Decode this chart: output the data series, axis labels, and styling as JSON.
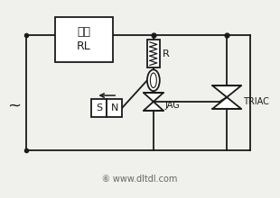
{
  "bg_color": "#f0f0ec",
  "line_color": "#1a1a1a",
  "title_text": "⑥ www.dltdl.com",
  "load_label_1": "负载",
  "load_label_2": "RL",
  "R_label": "R",
  "JAG_label": "JAG",
  "TRIAC_label": "TRIAC",
  "SN_label": "S N",
  "ac_label": "~",
  "lw": 1.3,
  "box_color": "white"
}
